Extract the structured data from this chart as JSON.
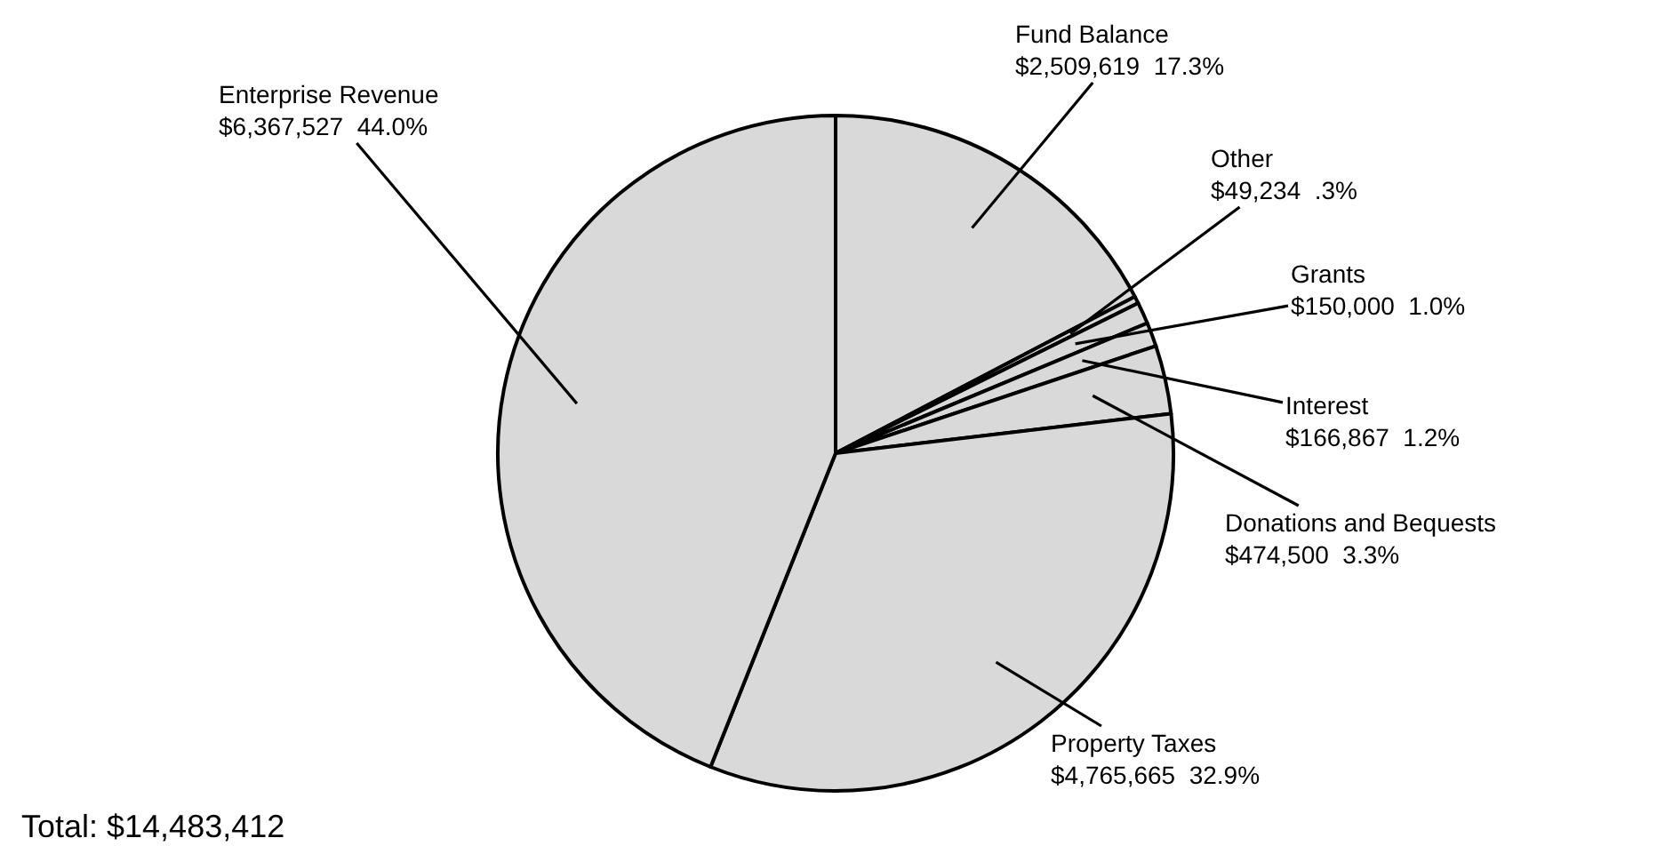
{
  "chart_data": {
    "type": "pie",
    "categories": [
      "Fund Balance",
      "Other",
      "Grants",
      "Interest",
      "Donations and Bequests",
      "Property Taxes",
      "Enterprise Revenue"
    ],
    "values": [
      2509619,
      49234,
      150000,
      166867,
      474500,
      4765665,
      6367527
    ],
    "value_labels": [
      "$2,509,619  17.3%",
      "$49,234  .3%",
      "$150,000  1.0%",
      "$166,867  1.2%",
      "$474,500  3.3%",
      "$4,765,665  32.9%",
      "$6,367,527  44.0%"
    ],
    "colors": [
      "#d9d9d9",
      "#d9d9d9",
      "#d9d9d9",
      "#d9d9d9",
      "#d9d9d9",
      "#d9d9d9",
      "#d9d9d9"
    ],
    "annotations": [
      "Total: $14,483,412"
    ],
    "legend": false
  }
}
